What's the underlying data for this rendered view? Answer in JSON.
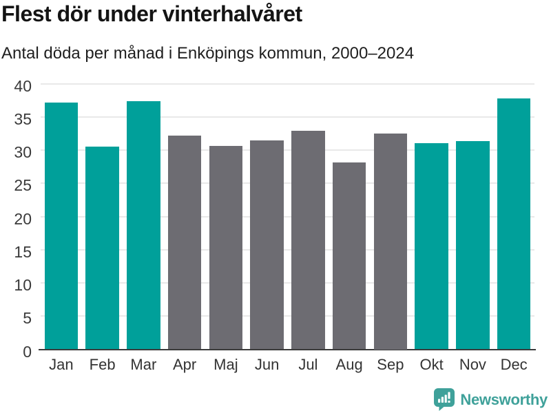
{
  "header": {
    "title": "Flest dör under vinterhalvåret",
    "subtitle": "Antal döda per månad i Enköpings kommun, 2000–2024"
  },
  "chart_data": {
    "type": "bar",
    "title": "Flest dör under vinterhalvåret",
    "subtitle": "Antal döda per månad i Enköpings kommun, 2000–2024",
    "categories": [
      "Jan",
      "Feb",
      "Mar",
      "Apr",
      "Maj",
      "Jun",
      "Jul",
      "Aug",
      "Sep",
      "Okt",
      "Nov",
      "Dec"
    ],
    "values": [
      37.2,
      30.5,
      37.4,
      32.2,
      30.6,
      31.4,
      32.9,
      28.1,
      32.5,
      31.0,
      31.3,
      37.8
    ],
    "bar_colors": [
      "#00a09a",
      "#00a09a",
      "#00a09a",
      "#6d6c72",
      "#6d6c72",
      "#6d6c72",
      "#6d6c72",
      "#6d6c72",
      "#6d6c72",
      "#00a09a",
      "#00a09a",
      "#00a09a"
    ],
    "xlabel": "",
    "ylabel": "",
    "ylim": [
      0,
      40
    ],
    "yticks": [
      0,
      5,
      10,
      15,
      20,
      25,
      30,
      35,
      40
    ],
    "grid": "horizontal",
    "legend": "none"
  },
  "colors": {
    "bar_winter_teal": "#00a09a",
    "bar_summer_gray": "#6d6c72",
    "gridline": "#e8e8e8",
    "axis_line": "#3a3a3a",
    "brand_teal": "#3fa19a"
  },
  "footer": {
    "brand": "Newsworthy",
    "logo_icon": "bar-chart-speech-bubble-icon"
  }
}
